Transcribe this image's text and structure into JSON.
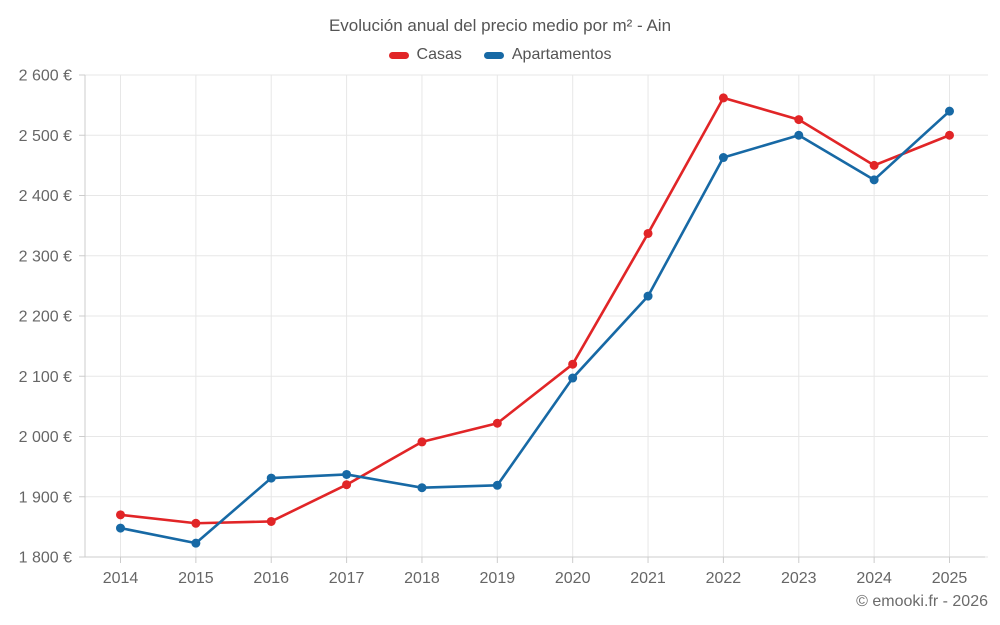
{
  "page": {
    "title": "Evolución anual del precio medio por m² - Ain",
    "footer": "© emooki.fr - 2026"
  },
  "chart_data": {
    "type": "line",
    "title": "Evolución anual del precio medio por m² - Ain",
    "categories": [
      "2014",
      "2015",
      "2016",
      "2017",
      "2018",
      "2019",
      "2020",
      "2021",
      "2022",
      "2023",
      "2024",
      "2025"
    ],
    "series": [
      {
        "name": "Casas",
        "color": "#e12527",
        "values": [
          1870,
          1856,
          1859,
          1920,
          1991,
          2022,
          2120,
          2337,
          2562,
          2526,
          2450,
          2500
        ]
      },
      {
        "name": "Apartamentos",
        "color": "#1769a5",
        "values": [
          1848,
          1823,
          1931,
          1937,
          1915,
          1919,
          2097,
          2233,
          2463,
          2500,
          2426,
          2540
        ]
      }
    ],
    "ylim": [
      1800,
      2600
    ],
    "y_tick_step": 100,
    "y_tick_labels": [
      "1 800 €",
      "1 900 €",
      "2 000 €",
      "2 100 €",
      "2 200 €",
      "2 300 €",
      "2 400 €",
      "2 500 €",
      "2 600 €"
    ],
    "ylabel": "",
    "xlabel": "",
    "grid": true,
    "legend_position": "top",
    "marker": "circle",
    "styles": {
      "grid_color": "#e7e7e7",
      "axis_color": "#cccccc",
      "tick_label_color": "#666666",
      "background": "#ffffff"
    }
  }
}
